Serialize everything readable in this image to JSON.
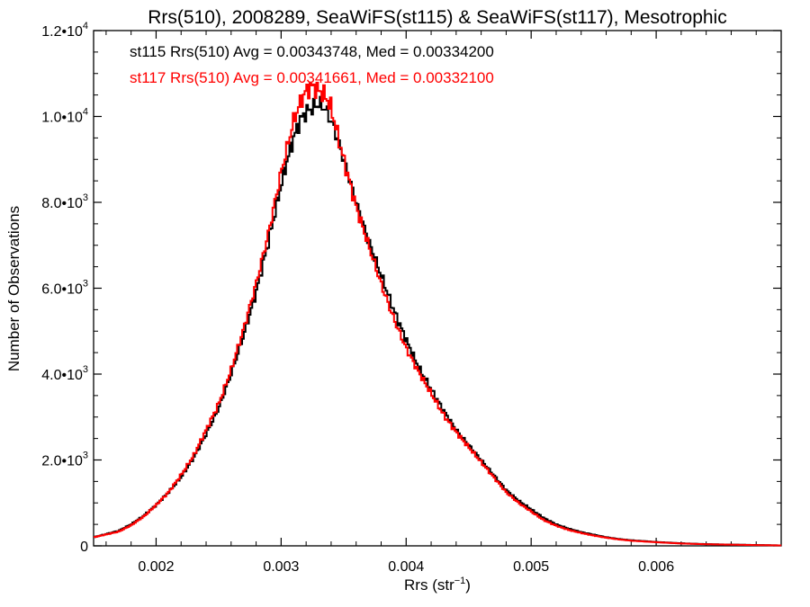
{
  "chart_data": {
    "type": "line",
    "title": "Rrs(510), 2008289, SeaWiFS(st115) & SeaWiFS(st117), Mesotrophic",
    "xlabel": "Rrs (str⁻¹)",
    "ylabel": "Number of Observations",
    "xlim": [
      0.0015,
      0.007
    ],
    "ylim": [
      0,
      12000
    ],
    "x_ticks": [
      0.002,
      0.003,
      0.004,
      0.005,
      0.006
    ],
    "x_tick_labels": [
      "0.002",
      "0.003",
      "0.004",
      "0.005",
      "0.006"
    ],
    "y_ticks": [
      0,
      2000,
      4000,
      6000,
      8000,
      10000,
      12000
    ],
    "y_tick_labels": [
      {
        "base": "0",
        "exp": ""
      },
      {
        "base": "2.0•10",
        "exp": "3"
      },
      {
        "base": "4.0•10",
        "exp": "3"
      },
      {
        "base": "6.0•10",
        "exp": "3"
      },
      {
        "base": "8.0•10",
        "exp": "3"
      },
      {
        "base": "1.0•10",
        "exp": "4"
      },
      {
        "base": "1.2•10",
        "exp": "4"
      }
    ],
    "annotations": [
      {
        "text": "st115 Rrs(510) Avg = 0.00343748, Med = 0.00334200",
        "color": "#000000"
      },
      {
        "text": "st117 Rrs(510) Avg = 0.00341661, Med = 0.00332100",
        "color": "#ff0000"
      }
    ],
    "series": [
      {
        "color": "#000000",
        "x": [
          0.0015,
          0.0017,
          0.0018,
          0.0019,
          0.002,
          0.0021,
          0.0022,
          0.0023,
          0.0024,
          0.0025,
          0.0026,
          0.0027,
          0.0028,
          0.0029,
          0.003,
          0.00305,
          0.0031,
          0.00315,
          0.0032,
          0.00325,
          0.0033,
          0.00335,
          0.0034,
          0.00345,
          0.0035,
          0.0036,
          0.0037,
          0.0038,
          0.0039,
          0.004,
          0.0041,
          0.0042,
          0.0043,
          0.0044,
          0.0045,
          0.0046,
          0.0047,
          0.0048,
          0.0049,
          0.005,
          0.0051,
          0.0052,
          0.0053,
          0.0054,
          0.0055,
          0.0056,
          0.0057,
          0.0058,
          0.006,
          0.0062,
          0.0064,
          0.0066,
          0.0068,
          0.007
        ],
        "y": [
          200,
          350,
          500,
          700,
          950,
          1250,
          1600,
          2050,
          2600,
          3200,
          4000,
          4900,
          5900,
          7100,
          8400,
          9000,
          9500,
          9900,
          10100,
          10200,
          10300,
          10200,
          9900,
          9500,
          9000,
          8000,
          7100,
          6300,
          5500,
          4800,
          4150,
          3650,
          3150,
          2700,
          2350,
          2000,
          1650,
          1300,
          1050,
          850,
          650,
          500,
          400,
          320,
          260,
          200,
          160,
          130,
          90,
          60,
          40,
          30,
          20,
          10
        ]
      },
      {
        "color": "#ff0000",
        "x": [
          0.0015,
          0.0017,
          0.0018,
          0.0019,
          0.002,
          0.0021,
          0.0022,
          0.0023,
          0.0024,
          0.0025,
          0.0026,
          0.0027,
          0.0028,
          0.0029,
          0.003,
          0.00305,
          0.0031,
          0.00315,
          0.0032,
          0.00325,
          0.0033,
          0.00335,
          0.0034,
          0.00345,
          0.0035,
          0.0036,
          0.0037,
          0.0038,
          0.0039,
          0.004,
          0.0041,
          0.0042,
          0.0043,
          0.0044,
          0.0045,
          0.0046,
          0.0047,
          0.0048,
          0.0049,
          0.005,
          0.0051,
          0.0052,
          0.0053,
          0.0054,
          0.0055,
          0.0056,
          0.0057,
          0.0058,
          0.006,
          0.0062,
          0.0064,
          0.0066,
          0.0068,
          0.007
        ],
        "y": [
          200,
          330,
          480,
          680,
          950,
          1250,
          1650,
          2100,
          2700,
          3300,
          4100,
          5050,
          6100,
          7300,
          8700,
          9300,
          9900,
          10300,
          10600,
          10700,
          10600,
          10500,
          10200,
          9600,
          9000,
          7900,
          7000,
          6100,
          5300,
          4600,
          4050,
          3550,
          3050,
          2650,
          2300,
          1950,
          1600,
          1250,
          1000,
          800,
          600,
          470,
          370,
          300,
          240,
          190,
          150,
          120,
          85,
          55,
          38,
          28,
          18,
          10
        ]
      }
    ]
  }
}
